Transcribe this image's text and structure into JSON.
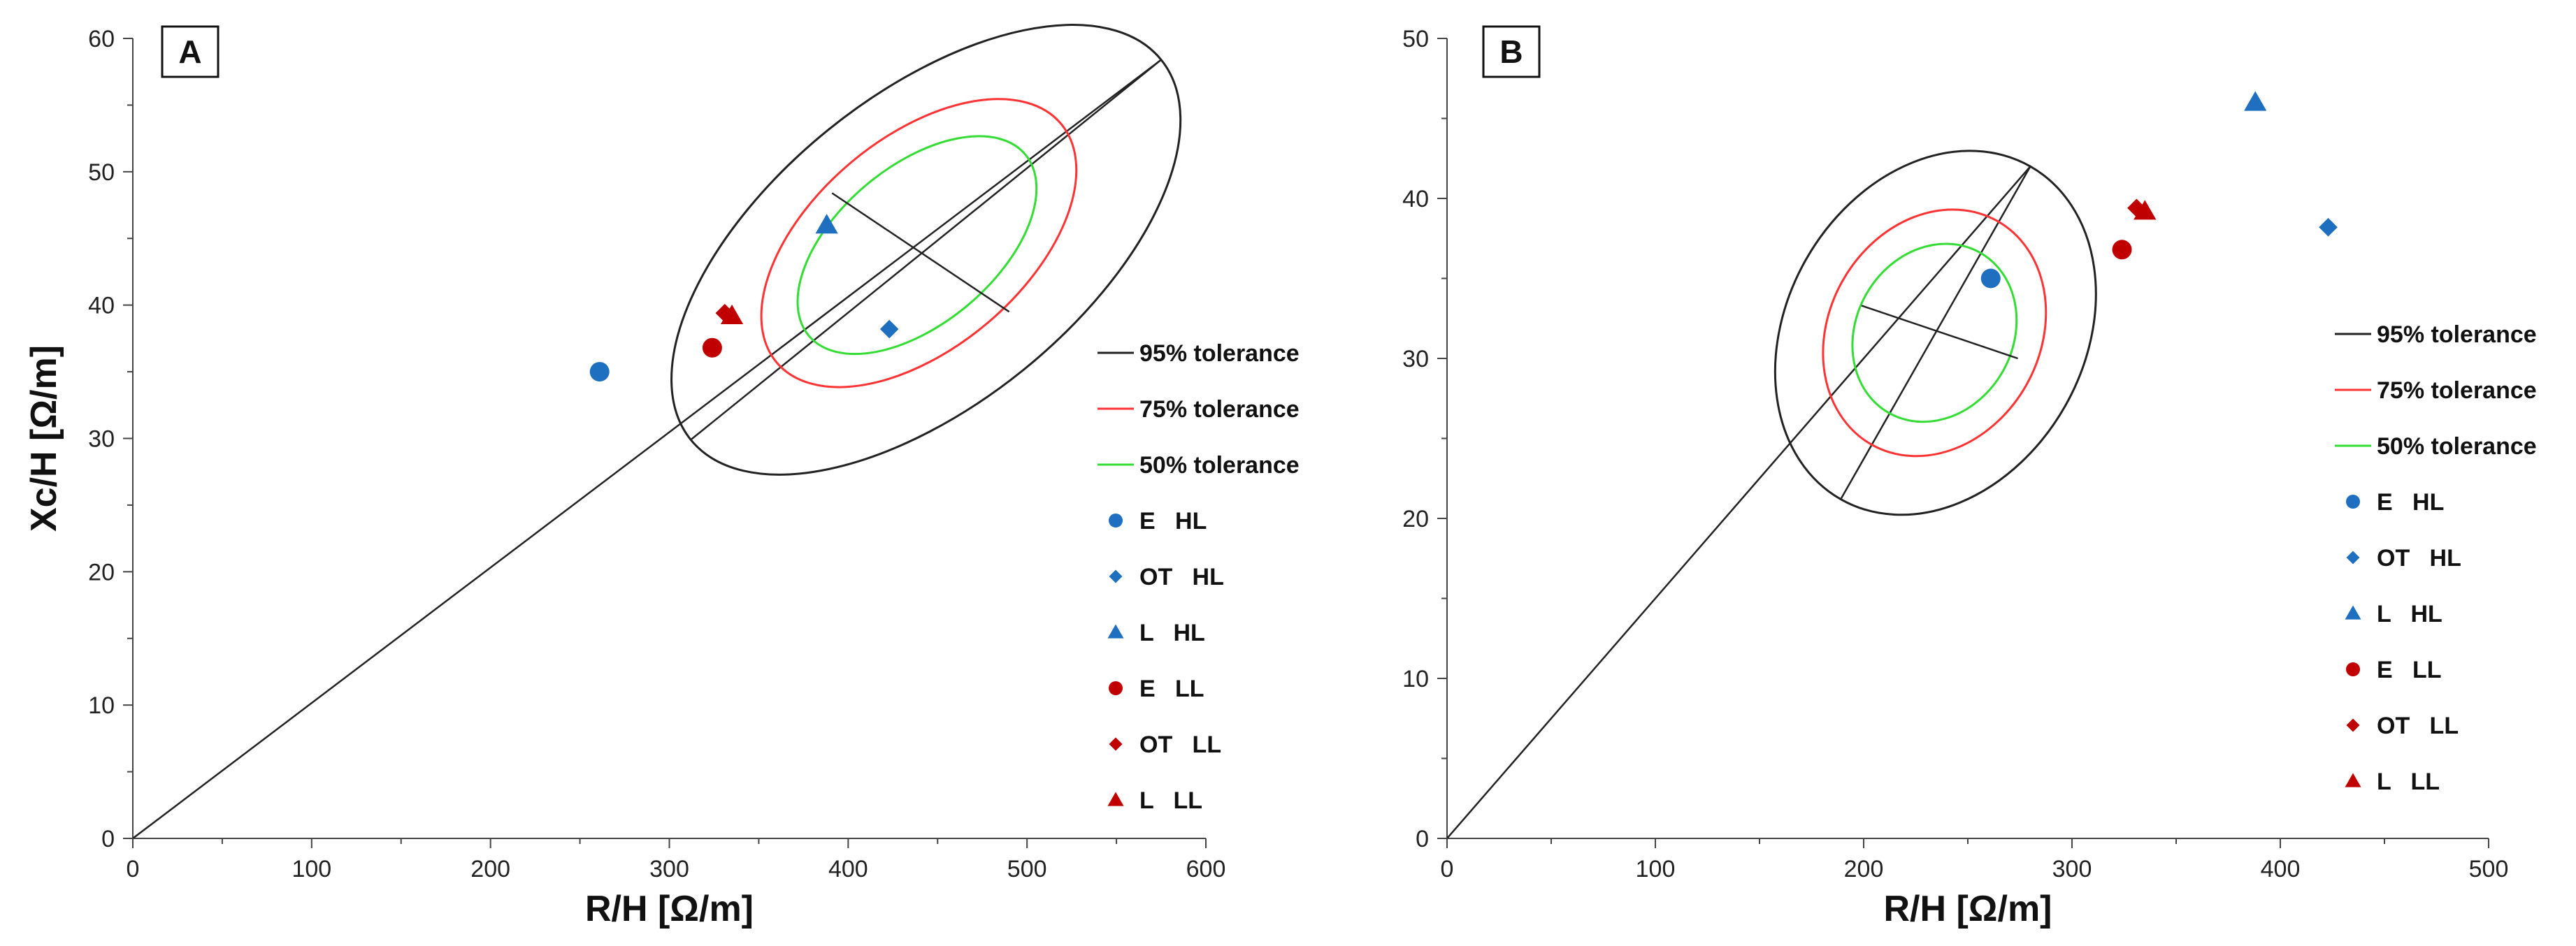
{
  "colors": {
    "axis": "#444444",
    "tol95": "#222222",
    "tol75": "#ff3333",
    "tol50": "#33dd33",
    "hl": "#1f6fc0",
    "ll": "#c00000"
  },
  "chart_data": [
    {
      "type": "scatter",
      "panel_label": "A",
      "xlabel": "R/H [Ω/m]",
      "ylabel": "Xc/H [Ω/m]",
      "xlim": [
        0,
        600
      ],
      "ylim": [
        0,
        60
      ],
      "xticks": [
        0,
        100,
        200,
        300,
        400,
        500,
        600
      ],
      "yticks": [
        0,
        10,
        20,
        30,
        40,
        50,
        60
      ],
      "tick_labels_x": [
        "0",
        "100",
        "200",
        "300",
        "400",
        "500",
        "600"
      ],
      "tick_labels_y": [
        "0",
        "10",
        "20",
        "30",
        "40",
        "50",
        "60"
      ],
      "reference_line": [
        [
          0,
          0
        ],
        [
          575,
          58.4
        ]
      ],
      "tolerance_ellipses": [
        {
          "label": "95% tolerance",
          "center": [
            438,
            44.5
          ],
          "major_end_a": [
            312,
            29.9
          ],
          "major_end_b": [
            575,
            58.4
          ],
          "minor_halfwidth": 11.6
        },
        {
          "label": "75% tolerance",
          "center": [
            438,
            44.5
          ],
          "major_end_a": [
            360,
            35.7
          ],
          "major_end_b": [
            519,
            53.6
          ],
          "minor_halfwidth": 7.9
        },
        {
          "label": "50% tolerance",
          "center": [
            438,
            44.5
          ],
          "major_end_a": [
            378,
            37.7
          ],
          "major_end_b": [
            499,
            51.3
          ],
          "minor_halfwidth": 5.9
        }
      ],
      "minor_axis_segment": [
        [
          391,
          48.4
        ],
        [
          490,
          39.5
        ]
      ],
      "points": [
        {
          "label": "E   HL",
          "marker": "circle",
          "color": "hl",
          "x": 261,
          "y": 35
        },
        {
          "label": "OT   HL",
          "marker": "diamond",
          "color": "hl",
          "x": 423,
          "y": 38.2
        },
        {
          "label": "L   HL",
          "marker": "triangle",
          "color": "hl",
          "x": 388,
          "y": 46
        },
        {
          "label": "E   LL",
          "marker": "circle",
          "color": "ll",
          "x": 324,
          "y": 36.8
        },
        {
          "label": "OT   LL",
          "marker": "diamond",
          "color": "ll",
          "x": 331,
          "y": 39.4
        },
        {
          "label": "L   LL",
          "marker": "triangle",
          "color": "ll",
          "x": 335,
          "y": 39.2
        }
      ],
      "legend": [
        "95% tolerance",
        "75% tolerance",
        "50% tolerance",
        "E   HL",
        "OT   HL",
        "L   HL",
        "E   LL",
        "OT   LL",
        "L   LL"
      ]
    },
    {
      "type": "scatter",
      "panel_label": "B",
      "xlabel": "R/H [Ω/m]",
      "ylabel": "",
      "xlim": [
        0,
        500
      ],
      "ylim": [
        0,
        50
      ],
      "xticks": [
        0,
        100,
        200,
        300,
        400,
        500
      ],
      "yticks": [
        0,
        10,
        20,
        30,
        40,
        50
      ],
      "tick_labels_x": [
        "0",
        "100",
        "200",
        "300",
        "400",
        "500"
      ],
      "tick_labels_y": [
        "0",
        "10",
        "20",
        "30",
        "40",
        "50"
      ],
      "reference_line": [
        [
          0,
          0
        ],
        [
          280,
          42
        ]
      ],
      "tolerance_ellipses": [
        {
          "label": "95% tolerance",
          "center": [
            234,
            31.6
          ],
          "major_end_a": [
            189,
            21.2
          ],
          "major_end_b": [
            280,
            42
          ],
          "minor_halfwidth": 9.3
        },
        {
          "label": "75% tolerance",
          "center": [
            234,
            31.6
          ],
          "major_end_a": [
            204,
            24.6
          ],
          "major_end_b": [
            264,
            38.6
          ],
          "minor_halfwidth": 6.6
        },
        {
          "label": "50% tolerance",
          "center": [
            234,
            31.6
          ],
          "major_end_a": [
            212,
            26.6
          ],
          "major_end_b": [
            256,
            36.6
          ],
          "minor_halfwidth": 4.9
        }
      ],
      "minor_axis_segment": [
        [
          199,
          33.3
        ],
        [
          274,
          30
        ]
      ],
      "points": [
        {
          "label": "E   HL",
          "marker": "circle",
          "color": "hl",
          "x": 261,
          "y": 35
        },
        {
          "label": "OT   HL",
          "marker": "diamond",
          "color": "hl",
          "x": 423,
          "y": 38.2
        },
        {
          "label": "L   HL",
          "marker": "triangle",
          "color": "hl",
          "x": 388,
          "y": 46
        },
        {
          "label": "E   LL",
          "marker": "circle",
          "color": "ll",
          "x": 324,
          "y": 36.8
        },
        {
          "label": "OT   LL",
          "marker": "diamond",
          "color": "ll",
          "x": 331,
          "y": 39.4
        },
        {
          "label": "L   LL",
          "marker": "triangle",
          "color": "ll",
          "x": 335,
          "y": 39.2
        }
      ],
      "legend": [
        "95% tolerance",
        "75% tolerance",
        "50% tolerance",
        "E   HL",
        "OT   HL",
        "L   HL",
        "E   LL",
        "OT   LL",
        "L   LL"
      ]
    }
  ]
}
